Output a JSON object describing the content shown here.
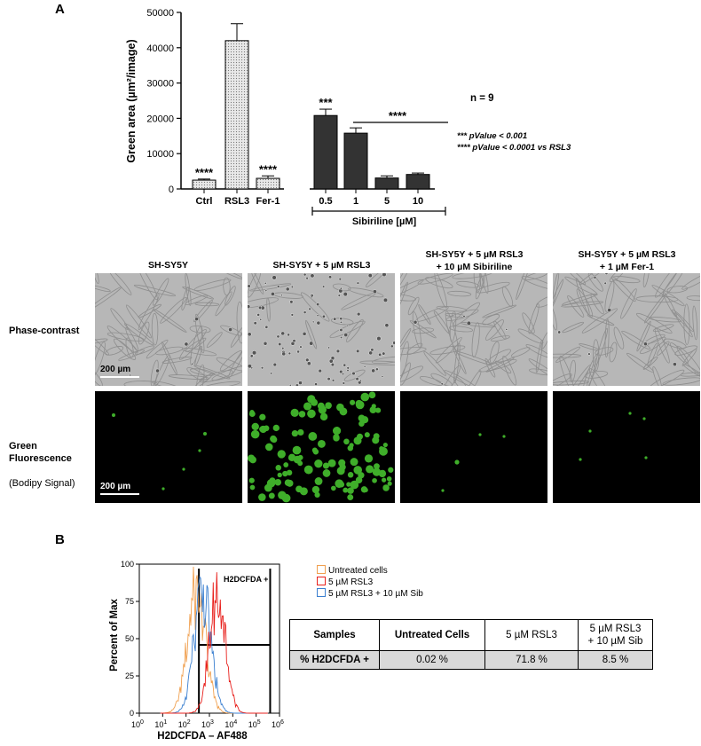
{
  "panel_a": {
    "label": "A",
    "n_note": "n = 9",
    "pvalue_lines": [
      "*** pValue < 0.001",
      "**** pValue < 0.0001 vs RSL3"
    ],
    "group_label": "Sibiriline [µM]",
    "group_sig": "****",
    "chart_data": {
      "type": "bar",
      "ylabel": "Green area (µm²/image)",
      "ylim": [
        0,
        50000
      ],
      "yticks": [
        0,
        10000,
        20000,
        30000,
        40000,
        50000
      ],
      "categories": [
        "Ctrl",
        "RSL3",
        "Fer-1",
        "0.5",
        "1",
        "5",
        "10"
      ],
      "values": [
        2500,
        42000,
        3000,
        20800,
        15800,
        3100,
        4100
      ],
      "errors": [
        300,
        4800,
        700,
        1800,
        1500,
        600,
        400
      ],
      "significance": [
        "****",
        "",
        "****",
        "***",
        "",
        "",
        ""
      ],
      "fills": [
        "dotted-light",
        "dotted-light",
        "dotted-light",
        "#333333",
        "#333333",
        "#333333",
        "#333333"
      ]
    }
  },
  "microscopy": {
    "columns": [
      "SH-SY5Y",
      "SH-SY5Y + 5 µM RSL3",
      "SH-SY5Y + 5 µM RSL3\n+ 10 µM Sibiriline",
      "SH-SY5Y + 5 µM RSL3\n+ 1 µM Fer-1"
    ],
    "rows": [
      {
        "label": "Phase-contrast",
        "sub": ""
      },
      {
        "label": "Green\nFluorescence",
        "sub": "(Bodipy Signal)"
      }
    ],
    "scale_bar": "200 µm",
    "dot_color": "#3fae2a"
  },
  "panel_b": {
    "label": "B",
    "histogram": {
      "ylabel": "Percent of Max",
      "xlabel": "H2DCFDA – AF488",
      "yticks": [
        "0",
        "25",
        "50",
        "75",
        "100"
      ],
      "xticks": [
        "0",
        "1",
        "2",
        "3",
        "4",
        "5",
        "6"
      ],
      "gate_label": "H2DCFDA +",
      "legend": [
        {
          "name": "Untreated cells",
          "color": "#f0a050"
        },
        {
          "name": "5 µM RSL3",
          "color": "#e8201c"
        },
        {
          "name": "5 µM RSL3 + 10 µM Sib",
          "color": "#3a7fd0"
        }
      ]
    },
    "table": {
      "headers": [
        "Samples",
        "Untreated Cells",
        "5 µM RSL3",
        "5 µM RSL3\n+ 10 µM Sib"
      ],
      "row": [
        "% H2DCFDA +",
        "0.02 %",
        "71.8 %",
        "8.5 %"
      ]
    }
  }
}
